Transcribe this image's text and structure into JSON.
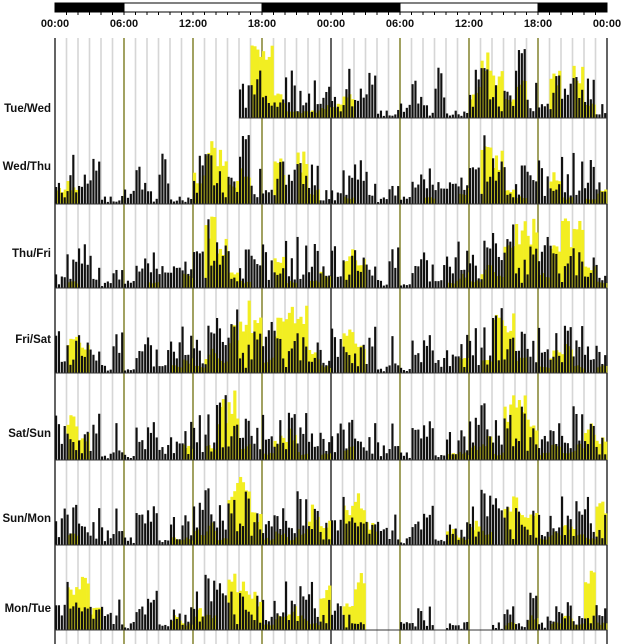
{
  "chart_data": {
    "type": "bar",
    "title": "",
    "description_kind": "double-plotted actogram",
    "xlabel": "",
    "ylabel": "",
    "x_tick_labels": [
      "00:00",
      "06:00",
      "12:00",
      "18:00",
      "00:00",
      "06:00",
      "12:00",
      "18:00",
      "00:00"
    ],
    "x_range_hours": [
      0,
      48
    ],
    "light_dark_bar": [
      {
        "from": 0,
        "to": 6,
        "phase": "dark"
      },
      {
        "from": 6,
        "to": 18,
        "phase": "light"
      },
      {
        "from": 18,
        "to": 30,
        "phase": "dark"
      },
      {
        "from": 30,
        "to": 42,
        "phase": "light"
      },
      {
        "from": 42,
        "to": 48,
        "phase": "dark"
      }
    ],
    "row_labels": [
      "Tue/Wed",
      "Wed/Thu",
      "Thu/Fri",
      "Fri/Sat",
      "Sat/Sun",
      "Sun/Mon",
      "Mon/Tue"
    ],
    "ylim": [
      0,
      10
    ],
    "series": [
      {
        "name": "activity",
        "color": "#111111"
      },
      {
        "name": "light",
        "color": "#f2ee22"
      }
    ],
    "days": [
      {
        "day": "Tue",
        "activity": [
          -1,
          -1,
          -1,
          -1,
          -1,
          -1,
          -1,
          -1,
          -1,
          -1,
          -1,
          -1,
          -1,
          -1,
          -1,
          -1,
          5,
          6,
          3,
          4,
          6,
          4,
          5,
          4
        ],
        "light": [
          0,
          0,
          0,
          0,
          0,
          0,
          0,
          0,
          0,
          0,
          0,
          0,
          0,
          0,
          0,
          0,
          0,
          9,
          9,
          3,
          1,
          1,
          1,
          2
        ]
      },
      {
        "day": "Wed",
        "activity": [
          5,
          7,
          4,
          7,
          1,
          1,
          2,
          5,
          2,
          7,
          1,
          1,
          6,
          8,
          5,
          7,
          9,
          5,
          2,
          6,
          5,
          6,
          5,
          2
        ],
        "light": [
          2,
          3,
          0,
          0,
          0,
          0,
          0,
          0,
          0,
          0,
          0,
          0,
          4,
          10,
          7,
          3,
          5,
          0,
          0,
          6,
          0,
          7,
          2,
          0
        ]
      },
      {
        "day": "Thu",
        "activity": [
          2,
          5,
          6,
          5,
          1,
          3,
          1,
          4,
          5,
          3,
          3,
          4,
          6,
          9,
          7,
          5,
          6,
          5,
          6,
          4,
          6,
          7,
          6,
          3
        ],
        "light": [
          0,
          1,
          0,
          0,
          0,
          0,
          0,
          0,
          1,
          0,
          0,
          2,
          0,
          9,
          7,
          2,
          1,
          0,
          0,
          4,
          1,
          0,
          1,
          2
        ]
      },
      {
        "day": "Fri",
        "activity": [
          6,
          5,
          6,
          5,
          2,
          5,
          1,
          4,
          5,
          3,
          4,
          6,
          5,
          6,
          7,
          8,
          4,
          6,
          7,
          6,
          4,
          5,
          5,
          3
        ],
        "light": [
          0,
          5,
          4,
          0,
          0,
          0,
          0,
          0,
          0,
          0,
          1,
          2,
          1,
          3,
          2,
          6,
          9,
          9,
          2,
          7,
          9,
          9,
          3,
          1
        ]
      },
      {
        "day": "Sat",
        "activity": [
          6,
          4,
          4,
          6,
          1,
          6,
          1,
          4,
          6,
          2,
          3,
          5,
          6,
          7,
          8,
          5,
          8,
          7,
          6,
          5,
          7,
          6,
          6,
          4
        ],
        "light": [
          0,
          6,
          4,
          0,
          0,
          0,
          0,
          0,
          0,
          0,
          0,
          2,
          0,
          2,
          8,
          9,
          2,
          0,
          1,
          3,
          4,
          1,
          0,
          1
        ]
      },
      {
        "day": "Sun",
        "activity": [
          5,
          6,
          3,
          5,
          3,
          6,
          1,
          4,
          5,
          1,
          5,
          4,
          6,
          7,
          6,
          6,
          7,
          5,
          6,
          5,
          5,
          7,
          6,
          3
        ],
        "light": [
          0,
          2,
          0,
          0,
          0,
          0,
          0,
          0,
          0,
          0,
          1,
          1,
          2,
          3,
          1,
          8,
          9,
          5,
          1,
          2,
          1,
          2,
          5,
          3
        ]
      },
      {
        "day": "Mon",
        "activity": [
          5,
          6,
          4,
          4,
          3,
          4,
          1,
          3,
          5,
          3,
          5,
          4,
          7,
          7,
          6,
          5,
          5,
          6,
          5,
          4,
          6,
          7,
          6,
          4
        ],
        "light": [
          0,
          6,
          7,
          3,
          0,
          0,
          0,
          0,
          0,
          0,
          2,
          1,
          3,
          2,
          0,
          7,
          6,
          5,
          1,
          2,
          3,
          2,
          1,
          6
        ]
      },
      {
        "day": "Tue",
        "activity": [
          4,
          2,
          1,
          0,
          0,
          0,
          1,
          3,
          3,
          0,
          1,
          1,
          0,
          0,
          1,
          3,
          1,
          5,
          2,
          3,
          4,
          2,
          4,
          4
        ],
        "light": [
          0,
          5,
          7,
          0,
          0,
          0,
          0,
          0,
          0,
          0,
          0,
          0,
          0,
          0,
          0,
          1,
          0,
          2,
          0,
          1,
          2,
          1,
          8,
          1
        ]
      }
    ]
  }
}
